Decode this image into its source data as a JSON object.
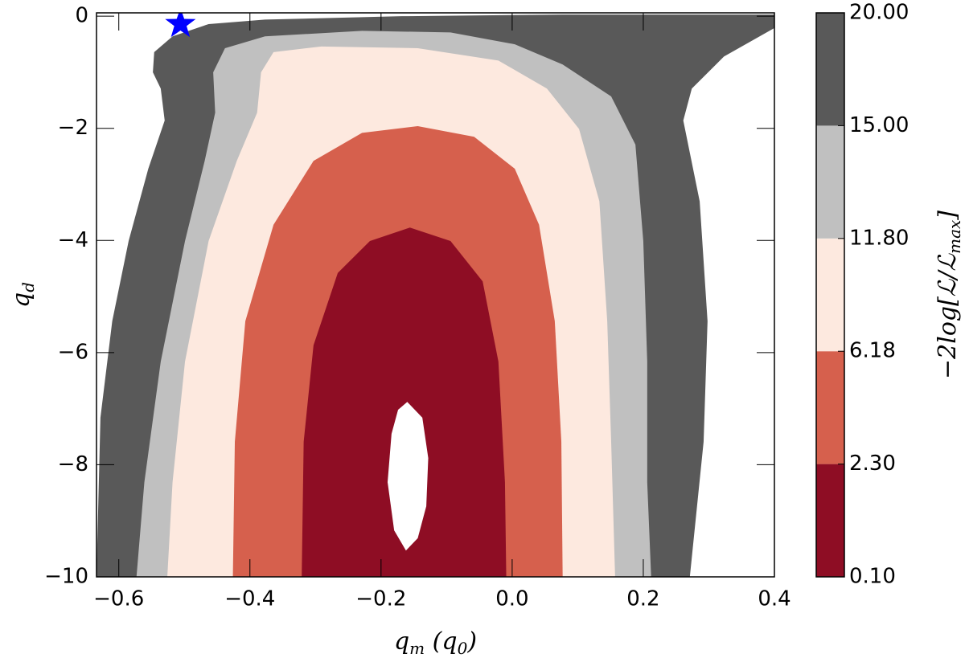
{
  "chart_data": {
    "type": "contourf",
    "xlabel": [
      {
        "text": "q"
      },
      {
        "sub": "m"
      },
      {
        "text": " (q"
      },
      {
        "sub": "0"
      },
      {
        "text": ")"
      }
    ],
    "ylabel": [
      {
        "text": "q"
      },
      {
        "sub": "d"
      }
    ],
    "colorbar_label": [
      {
        "text": "−2log[ℒ/ℒ"
      },
      {
        "sub": "max"
      },
      {
        "text": "]"
      }
    ],
    "xlim": [
      -0.634,
      0.4
    ],
    "ylim": [
      -10,
      0.06
    ],
    "xticks": [
      {
        "value": -0.6,
        "label": "−0.6"
      },
      {
        "value": -0.4,
        "label": "−0.4"
      },
      {
        "value": -0.2,
        "label": "−0.2"
      },
      {
        "value": 0.0,
        "label": "0.0"
      },
      0.2,
      0.4
    ],
    "yticks": [
      0,
      {
        "value": -2,
        "label": "−2"
      },
      {
        "value": -4,
        "label": "−4"
      },
      {
        "value": -6,
        "label": "−6"
      },
      {
        "value": -8,
        "label": "−8"
      },
      {
        "value": -10,
        "label": "−10"
      }
    ],
    "levels": [
      {
        "value": 0.1,
        "label": "0.10"
      },
      {
        "value": 2.3,
        "label": "2.30"
      },
      {
        "value": 6.18,
        "label": "6.18"
      },
      {
        "value": 11.8,
        "label": "11.80"
      },
      {
        "value": 15,
        "label": "15.00"
      },
      {
        "value": 20,
        "label": "20.00"
      }
    ],
    "colors": [
      "#8e0d24",
      "#d6604d",
      "#fde9df",
      "#c0c0c0",
      "#595959"
    ],
    "under_color": "#ffffff",
    "contours": [
      {
        "x": [
          -0.16,
          -0.137,
          -0.128,
          -0.131,
          -0.144,
          -0.162,
          -0.18,
          -0.19,
          -0.184,
          -0.174
        ],
        "y": [
          -6.88,
          -7.16,
          -7.88,
          -8.74,
          -9.31,
          -9.53,
          -9.17,
          -8.31,
          -7.45,
          -7.02
        ]
      },
      {
        "x": [
          -0.321,
          -0.318,
          -0.303,
          -0.266,
          -0.217,
          -0.156,
          -0.094,
          -0.045,
          -0.021,
          -0.011,
          -0.009
        ],
        "y": [
          -10,
          -7.59,
          -5.87,
          -4.58,
          -4.01,
          -3.77,
          -4.01,
          -4.73,
          -6.16,
          -8.31,
          -10
        ]
      },
      {
        "x": [
          -0.426,
          -0.423,
          -0.407,
          -0.364,
          -0.303,
          -0.229,
          -0.144,
          -0.058,
          0.004,
          0.041,
          0.065,
          0.075,
          0.077
        ],
        "y": [
          -10,
          -7.59,
          -5.44,
          -3.72,
          -2.58,
          -2.08,
          -1.96,
          -2.15,
          -2.72,
          -3.72,
          -5.44,
          -7.59,
          -10
        ]
      },
      {
        "x": [
          -0.526,
          -0.518,
          -0.499,
          -0.463,
          -0.42,
          -0.389,
          -0.383,
          -0.364,
          -0.291,
          -0.144,
          -0.021,
          0.053,
          0.102,
          0.133,
          0.145,
          0.151,
          0.157
        ],
        "y": [
          -10,
          -8.31,
          -6.16,
          -4.01,
          -2.58,
          -1.72,
          -1.0,
          -0.64,
          -0.54,
          -0.57,
          -0.79,
          -1.29,
          -2.01,
          -3.3,
          -5.44,
          -7.59,
          -10
        ]
      },
      {
        "x": [
          -0.573,
          -0.561,
          -0.536,
          -0.499,
          -0.469,
          -0.453,
          -0.456,
          -0.438,
          -0.377,
          -0.229,
          -0.094,
          0.004,
          0.077,
          0.151,
          0.188,
          0.2,
          0.206,
          0.206,
          0.212
        ],
        "y": [
          -10,
          -8.31,
          -6.16,
          -4.01,
          -2.58,
          -1.72,
          -1.0,
          -0.57,
          -0.36,
          -0.26,
          -0.29,
          -0.5,
          -0.86,
          -1.43,
          -2.29,
          -4.01,
          -6.16,
          -8.31,
          -10
        ]
      },
      {
        "x": [
          -0.634,
          -0.628,
          -0.61,
          -0.585,
          -0.555,
          -0.53,
          -0.536,
          -0.548,
          -0.546,
          -0.518,
          -0.463,
          -0.377,
          -0.168,
          0.077,
          0.4,
          0.4,
          0.323,
          0.274,
          0.261,
          0.286,
          0.298,
          0.292,
          0.271
        ],
        "y": [
          -10,
          -7.16,
          -5.44,
          -4.01,
          -2.72,
          -1.86,
          -1.29,
          -1.0,
          -0.64,
          -0.36,
          -0.14,
          -0.06,
          0,
          0.03,
          0.03,
          -0.21,
          -0.72,
          -1.29,
          -1.86,
          -3.3,
          -5.44,
          -7.59,
          -10
        ]
      }
    ],
    "marker": {
      "x": -0.506,
      "y": -0.14,
      "color": "#0000ff"
    }
  }
}
